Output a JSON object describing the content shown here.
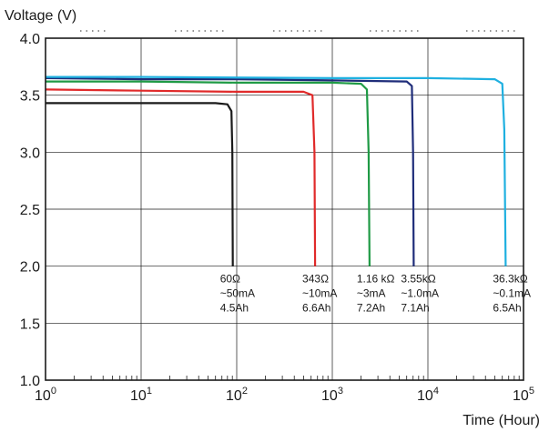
{
  "chart_data": {
    "type": "line",
    "title": "",
    "xlabel": "Time (Hour)",
    "ylabel": "Voltage (V)",
    "x_scale": "log",
    "xlim": [
      1,
      100000
    ],
    "ylim": [
      1.0,
      4.0
    ],
    "grid": true,
    "x_major_ticks": [
      1,
      10,
      100,
      1000,
      10000,
      100000
    ],
    "y_ticks": [
      {
        "value": 1.0,
        "label": "1.0"
      },
      {
        "value": 1.5,
        "label": "1.5"
      },
      {
        "value": 2.0,
        "label": "2.0"
      },
      {
        "value": 2.5,
        "label": "2.5"
      },
      {
        "value": 3.0,
        "label": "3.0"
      },
      {
        "value": 3.5,
        "label": "3.5"
      },
      {
        "value": 4.0,
        "label": "4.0"
      }
    ],
    "series": [
      {
        "color": "#1a1a1a",
        "points": [
          [
            1,
            3.43
          ],
          [
            10,
            3.43
          ],
          [
            60,
            3.43
          ],
          [
            80,
            3.42
          ],
          [
            88,
            3.36
          ],
          [
            90,
            3.0
          ],
          [
            91,
            2.0
          ]
        ],
        "annotation": [
          "60Ω",
          "~50mA",
          "4.5Ah"
        ]
      },
      {
        "color": "#e02a2a",
        "points": [
          [
            1,
            3.55
          ],
          [
            10,
            3.54
          ],
          [
            100,
            3.53
          ],
          [
            500,
            3.53
          ],
          [
            620,
            3.5
          ],
          [
            650,
            3.0
          ],
          [
            660,
            2.0
          ]
        ],
        "annotation": [
          "343Ω",
          "~10mA",
          "6.6Ah"
        ]
      },
      {
        "color": "#1f9a45",
        "points": [
          [
            1,
            3.62
          ],
          [
            10,
            3.62
          ],
          [
            100,
            3.61
          ],
          [
            1000,
            3.61
          ],
          [
            2000,
            3.6
          ],
          [
            2300,
            3.55
          ],
          [
            2400,
            3.0
          ],
          [
            2450,
            2.0
          ]
        ],
        "annotation": [
          "1.16 kΩ",
          "~3mA",
          "7.2Ah"
        ]
      },
      {
        "color": "#1f2d7a",
        "points": [
          [
            1,
            3.65
          ],
          [
            10,
            3.64
          ],
          [
            100,
            3.64
          ],
          [
            1000,
            3.63
          ],
          [
            6000,
            3.62
          ],
          [
            6800,
            3.58
          ],
          [
            7000,
            3.0
          ],
          [
            7100,
            2.0
          ]
        ],
        "annotation": [
          "3.55kΩ",
          "~1.0mA",
          "7.1Ah"
        ]
      },
      {
        "color": "#1fb0e0",
        "points": [
          [
            1,
            3.66
          ],
          [
            10,
            3.66
          ],
          [
            1000,
            3.65
          ],
          [
            10000,
            3.65
          ],
          [
            50000,
            3.64
          ],
          [
            60000,
            3.6
          ],
          [
            63000,
            3.2
          ],
          [
            65000,
            2.0
          ]
        ],
        "annotation": [
          "36.3kΩ",
          "~0.1mA",
          "6.5Ah"
        ]
      }
    ]
  }
}
